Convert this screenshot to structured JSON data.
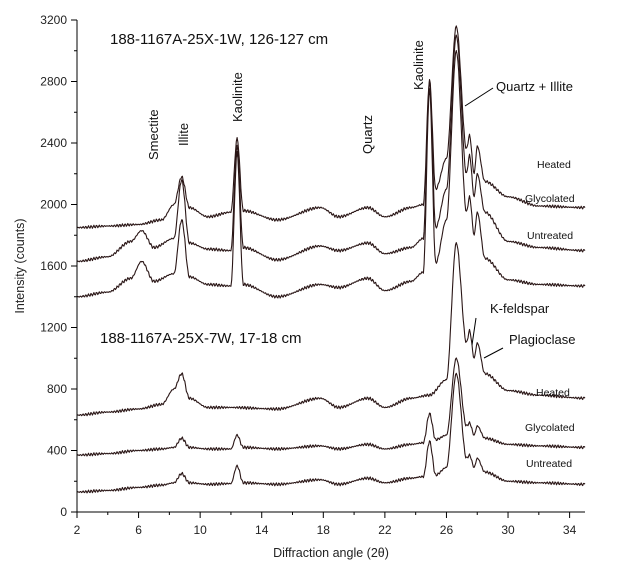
{
  "chart_data": {
    "type": "line",
    "xlabel": "Diffraction angle (2θ)",
    "ylabel": "Intensity (counts)",
    "xlim": [
      2,
      35
    ],
    "ylim": [
      0,
      3200
    ],
    "xticks": [
      2,
      6,
      10,
      14,
      18,
      22,
      26,
      30,
      34
    ],
    "yticks": [
      0,
      400,
      800,
      1200,
      1600,
      2000,
      2400,
      2800,
      3200
    ],
    "grid": false,
    "samples": [
      {
        "title": "188-1167A-25X-1W, 126-127 cm",
        "peak_labels": [
          "Smectite",
          "Illite",
          "Kaolinite",
          "Quartz",
          "Kaolinite",
          "Quartz + Illite"
        ],
        "series": [
          {
            "name": "Heated",
            "x": [
              2,
              4,
              6,
              7.5,
              8.3,
              8.8,
              9.3,
              10.5,
              12,
              12.4,
              12.8,
              15,
              17.8,
              19,
              20.9,
              22,
              23.7,
              24.5,
              24.9,
              25.3,
              26.0,
              26.64,
              27.3,
              27.5,
              27.8,
              28.0,
              28.5,
              30,
              32,
              35
            ],
            "y": [
              1850,
              1860,
              1870,
              1900,
              2000,
              2180,
              1980,
              1920,
              1950,
              2430,
              1960,
              1900,
              1980,
              1920,
              1980,
              1920,
              1980,
              2000,
              2810,
              2100,
              2300,
              3160,
              2360,
              2450,
              2200,
              2380,
              2150,
              2050,
              1990,
              1980
            ]
          },
          {
            "name": "Glycolated",
            "x": [
              2,
              4,
              5.5,
              6.2,
              7,
              8.3,
              8.8,
              9.3,
              10.5,
              12,
              12.4,
              12.8,
              15,
              17.8,
              19,
              20.9,
              22,
              23.7,
              24.5,
              24.9,
              25.3,
              26.0,
              26.64,
              27.3,
              27.5,
              27.8,
              28.0,
              28.5,
              30,
              32,
              35
            ],
            "y": [
              1630,
              1660,
              1760,
              1830,
              1720,
              1780,
              2160,
              1750,
              1710,
              1700,
              2380,
              1720,
              1640,
              1730,
              1700,
              1750,
              1680,
              1720,
              1780,
              2800,
              1850,
              2100,
              3100,
              2200,
              2320,
              2050,
              2200,
              1950,
              1760,
              1720,
              1700
            ]
          },
          {
            "name": "Untreated",
            "x": [
              2,
              4,
              5.5,
              6.2,
              7,
              8.3,
              8.8,
              9.3,
              10.5,
              12,
              12.4,
              12.8,
              15,
              17.8,
              19,
              20.9,
              22,
              23.7,
              24.5,
              24.9,
              25.3,
              26.0,
              26.64,
              27.3,
              27.5,
              27.8,
              28.0,
              28.5,
              30,
              32,
              35
            ],
            "y": [
              1400,
              1430,
              1520,
              1630,
              1500,
              1550,
              1900,
              1530,
              1480,
              1470,
              2340,
              1480,
              1400,
              1480,
              1460,
              1520,
              1440,
              1500,
              1560,
              2750,
              1620,
              1900,
              3000,
              1950,
              2050,
              1800,
              1950,
              1650,
              1510,
              1480,
              1470
            ]
          }
        ]
      },
      {
        "title": "188-1167A-25X-7W, 17-18 cm",
        "peak_labels": [
          "K-feldspar",
          "Plagioclase"
        ],
        "series": [
          {
            "name": "Heated",
            "x": [
              2,
              4,
              6,
              7.5,
              8.3,
              8.8,
              9.3,
              10.5,
              12,
              15,
              17.8,
              19,
              20.9,
              22,
              23.7,
              24.9,
              26.0,
              26.64,
              27.3,
              27.5,
              27.8,
              28.0,
              28.5,
              30,
              32,
              35
            ],
            "y": [
              630,
              650,
              670,
              700,
              800,
              900,
              740,
              680,
              680,
              670,
              740,
              680,
              740,
              680,
              740,
              760,
              860,
              1750,
              1100,
              1180,
              1000,
              1100,
              900,
              790,
              760,
              740
            ]
          },
          {
            "name": "Glycolated",
            "x": [
              2,
              4,
              6,
              7.5,
              8.3,
              8.8,
              9.3,
              10.5,
              12,
              12.4,
              12.8,
              15,
              17.8,
              19,
              20.9,
              22,
              23.7,
              24.5,
              24.9,
              25.3,
              26.0,
              26.64,
              27.3,
              27.5,
              27.8,
              28.0,
              28.5,
              30,
              32,
              35
            ],
            "y": [
              370,
              380,
              400,
              410,
              420,
              480,
              420,
              410,
              410,
              500,
              420,
              410,
              430,
              410,
              440,
              410,
              440,
              450,
              640,
              470,
              500,
              1000,
              560,
              580,
              500,
              560,
              480,
              440,
              430,
              420
            ]
          },
          {
            "name": "Untreated",
            "x": [
              2,
              4,
              6,
              7.5,
              8.3,
              8.8,
              9.3,
              10.5,
              12,
              12.4,
              12.8,
              15,
              17.8,
              19,
              20.9,
              22,
              23.7,
              24.5,
              24.9,
              25.3,
              26.0,
              26.64,
              27.3,
              27.5,
              27.8,
              28.0,
              28.5,
              30,
              32,
              35
            ],
            "y": [
              130,
              140,
              160,
              175,
              190,
              250,
              190,
              180,
              185,
              300,
              190,
              180,
              210,
              180,
              220,
              190,
              220,
              230,
              460,
              240,
              290,
              900,
              350,
              370,
              290,
              350,
              260,
              200,
              190,
              180
            ]
          }
        ]
      }
    ]
  }
}
